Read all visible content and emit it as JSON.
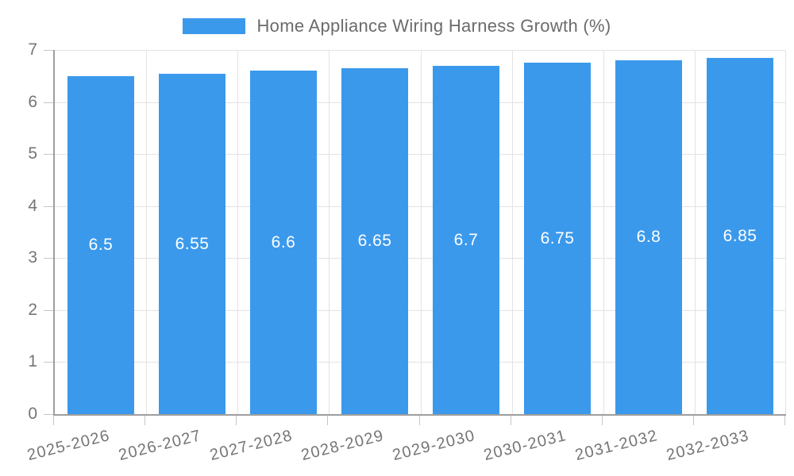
{
  "chart_data": {
    "type": "bar",
    "title": "Home Appliance Wiring Harness Growth (%)",
    "categories": [
      "2025-2026",
      "2026-2027",
      "2027-2028",
      "2028-2029",
      "2029-2030",
      "2030-2031",
      "2031-2032",
      "2032-2033"
    ],
    "series": [
      {
        "name": "Home Appliance Wiring Harness Growth (%)",
        "values": [
          6.5,
          6.55,
          6.6,
          6.65,
          6.7,
          6.75,
          6.8,
          6.85
        ],
        "color": "#3b99ec"
      }
    ],
    "value_labels": [
      "6.5",
      "6.55",
      "6.6",
      "6.65",
      "6.7",
      "6.75",
      "6.8",
      "6.85"
    ],
    "xlabel": "",
    "ylabel": "",
    "ylim": [
      0,
      7
    ],
    "yticks": [
      0,
      1,
      2,
      3,
      4,
      5,
      6,
      7
    ],
    "ytick_labels": [
      "0",
      "1",
      "2",
      "3",
      "4",
      "5",
      "6",
      "7"
    ],
    "grid": true,
    "legend_position": "top",
    "x_tick_rotation_deg": -14
  },
  "colors": {
    "bar": "#3b99ec",
    "gridline": "#e3e3e3",
    "axis": "#9e9e9e",
    "tickMark": "#c6c6c6",
    "tickText": "#757575",
    "titleText": "#6b6b6b",
    "valueText": "#ffffff",
    "background": "#ffffff"
  }
}
